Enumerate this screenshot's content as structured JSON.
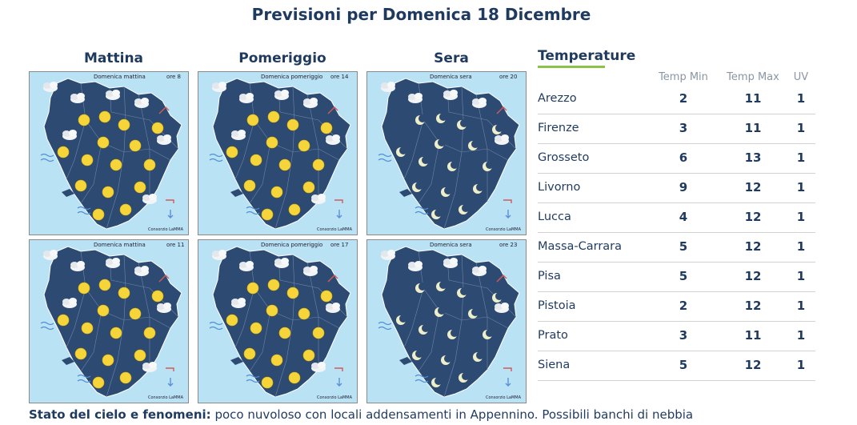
{
  "page": {
    "title": "Previsioni per Domenica 18 Dicembre"
  },
  "columns": [
    "Mattina",
    "Pomeriggio",
    "Sera"
  ],
  "maps": [
    {
      "label": "Domenica mattina",
      "ora": "ore 8",
      "credit": "Consorzio LaMMA",
      "period": "day"
    },
    {
      "label": "Domenica pomeriggio",
      "ora": "ore 14",
      "credit": "Consorzio LaMMA",
      "period": "day"
    },
    {
      "label": "Domenica sera",
      "ora": "ore 20",
      "credit": "Consorzio LaMMA",
      "period": "night"
    },
    {
      "label": "Domenica mattina",
      "ora": "ore 11",
      "credit": "Consorzio LaMMA",
      "period": "day"
    },
    {
      "label": "Domenica pomeriggio",
      "ora": "ore 17",
      "credit": "Consorzio LaMMA",
      "period": "day"
    },
    {
      "label": "Domenica sera",
      "ora": "ore 23",
      "credit": "Consorzio LaMMA",
      "period": "night"
    }
  ],
  "temperature": {
    "heading": "Temperature",
    "headers": [
      "Temp Min",
      "Temp Max",
      "UV"
    ],
    "rows": [
      {
        "city": "Arezzo",
        "min": "2",
        "max": "11",
        "uv": "1"
      },
      {
        "city": "Firenze",
        "min": "3",
        "max": "11",
        "uv": "1"
      },
      {
        "city": "Grosseto",
        "min": "6",
        "max": "13",
        "uv": "1"
      },
      {
        "city": "Livorno",
        "min": "9",
        "max": "12",
        "uv": "1"
      },
      {
        "city": "Lucca",
        "min": "4",
        "max": "12",
        "uv": "1"
      },
      {
        "city": "Massa-Carrara",
        "min": "5",
        "max": "12",
        "uv": "1"
      },
      {
        "city": "Pisa",
        "min": "5",
        "max": "12",
        "uv": "1"
      },
      {
        "city": "Pistoia",
        "min": "2",
        "max": "12",
        "uv": "1"
      },
      {
        "city": "Prato",
        "min": "3",
        "max": "11",
        "uv": "1"
      },
      {
        "city": "Siena",
        "min": "5",
        "max": "12",
        "uv": "1"
      }
    ]
  },
  "stato": {
    "label": "Stato del cielo e fenomeni:",
    "text": "poco nuvoloso con locali addensamenti in Appennino. Possibili banchi di nebbia"
  },
  "colors": {
    "region": "#2d4a72",
    "sea": "#b9e2f4",
    "sun": "#f6d53b",
    "moon": "#eeeec8",
    "accent": "#8bc34a"
  }
}
